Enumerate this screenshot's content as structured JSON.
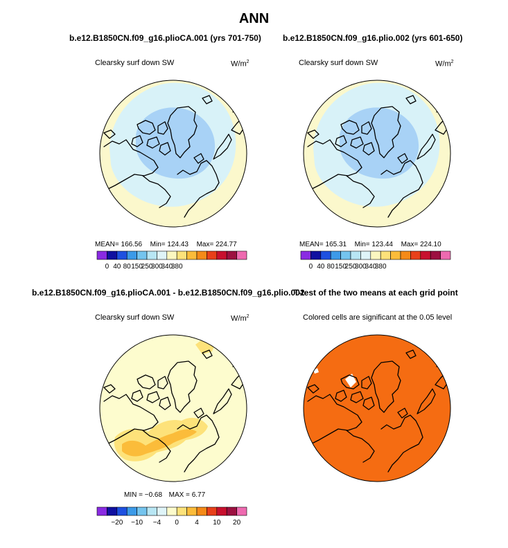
{
  "main_title": "ANN",
  "panels": [
    {
      "title": "b.e12.B1850CN.f09_g16.plioCA.001 (yrs 701-750)",
      "variable": "Clearsky surf down SW",
      "units_base": "W/m",
      "units_exp": "2",
      "stats": {
        "mean_label": "MEAN=",
        "mean": "166.56",
        "min_label": "Min=",
        "min": "124.43",
        "max_label": "Max=",
        "max": "224.77"
      }
    },
    {
      "title": "b.e12.B1850CN.f09_g16.plio.002 (yrs 601-650)",
      "variable": "Clearsky surf down SW",
      "units_base": "W/m",
      "units_exp": "2",
      "stats": {
        "mean_label": "MEAN=",
        "mean": "165.31",
        "min_label": "Min=",
        "min": "123.44",
        "max_label": "Max=",
        "max": "224.10"
      }
    },
    {
      "title": "b.e12.B1850CN.f09_g16.plioCA.001 - b.e12.B1850CN.f09_g16.plio.002",
      "variable": "Clearsky surf down SW",
      "units_base": "W/m",
      "units_exp": "2",
      "stats": {
        "min_label": "MIN =",
        "min": "−0.68",
        "max_label": "MAX =",
        "max": "6.77"
      }
    },
    {
      "title": "T-test of the two means at each grid point",
      "variable": "Colored cells are significant at the 0.05 level"
    }
  ],
  "colorbars": {
    "absolute": {
      "colors": [
        "#8a2be2",
        "#1010a0",
        "#1e50e0",
        "#3c9ae8",
        "#74c4ee",
        "#b8e6f4",
        "#dff4f8",
        "#fbf7c0",
        "#fde27a",
        "#fbbc3a",
        "#f58a18",
        "#e8401a",
        "#c8102e",
        "#9c1040",
        "#ee6ab0"
      ],
      "labels": [
        "0",
        "40",
        "80",
        "150",
        "250",
        "300",
        "340",
        "380"
      ]
    },
    "difference": {
      "colors": [
        "#8a2be2",
        "#1010a0",
        "#1e50e0",
        "#3c9ae8",
        "#74c4ee",
        "#b8e6f4",
        "#dff4f8",
        "#fdfbcc",
        "#fde27a",
        "#fbbc3a",
        "#f58a18",
        "#e8401a",
        "#c8102e",
        "#9c1040",
        "#ee6ab0"
      ],
      "labels": [
        "−20",
        "−10",
        "−4",
        "0",
        "4",
        "10",
        "20"
      ]
    }
  },
  "colors": {
    "outer_ring": "#fbf8cc",
    "mid_band": "#d8f2f8",
    "inner_core": "#a8d2f6",
    "diff_background": "#fdfcce",
    "diff_positive_light": "#fde27a",
    "diff_positive_strong": "#fbbc3a",
    "ttest_significant": "#f56c12",
    "ttest_not_significant": "#ffffff"
  }
}
